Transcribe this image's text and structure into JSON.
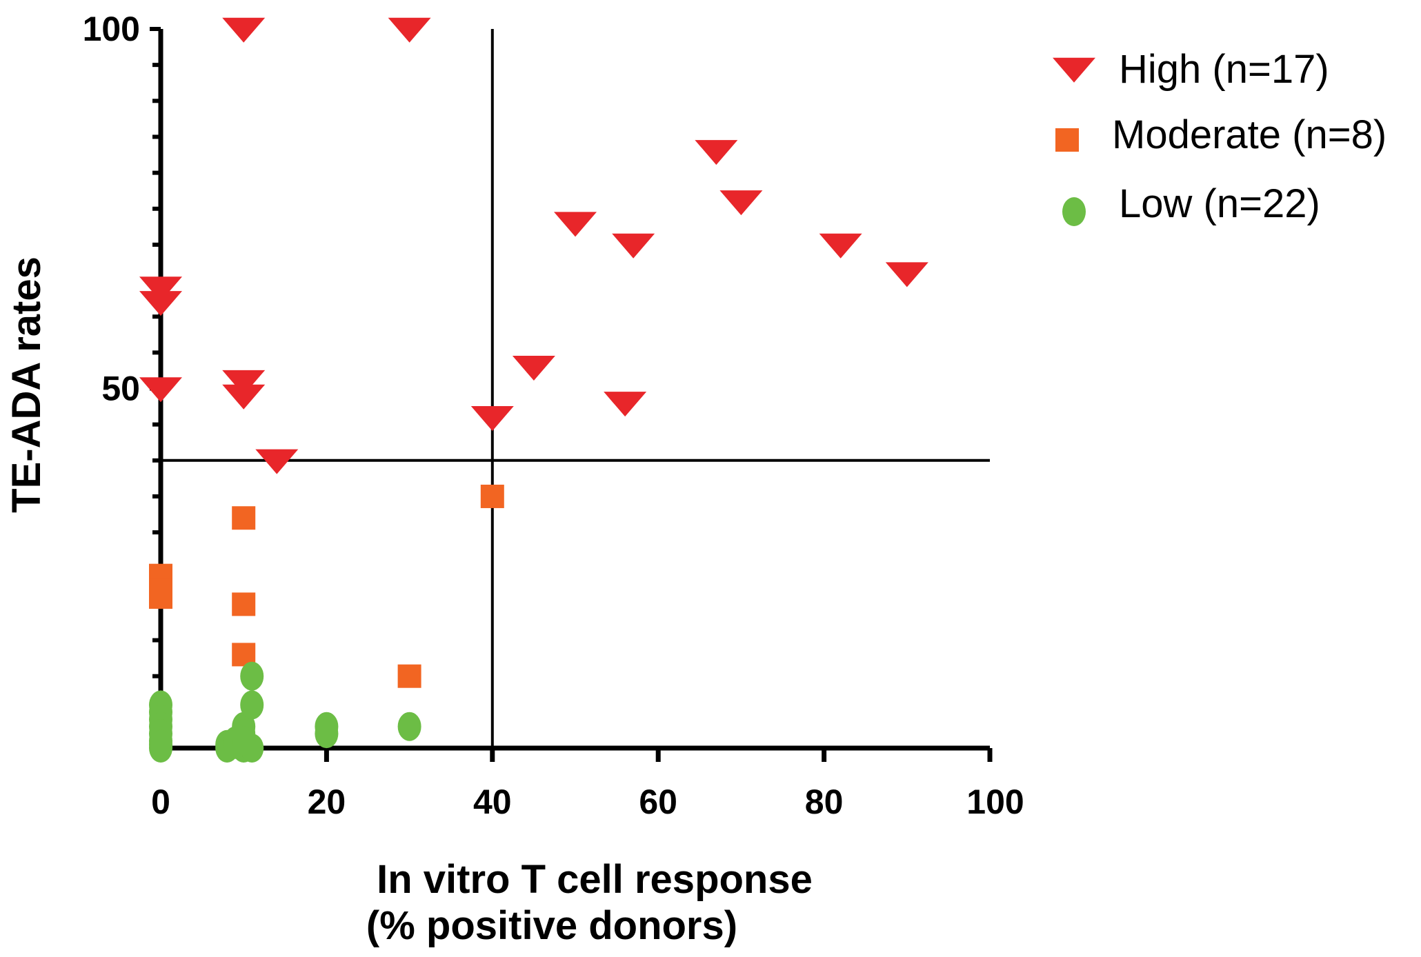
{
  "chart_data": {
    "type": "scatter",
    "xlabel_line1": "In vitro T cell response",
    "xlabel_line2": "(% positive donors)",
    "ylabel": "TE-ADA rates",
    "xlim": [
      0,
      100
    ],
    "ylim": [
      0,
      100
    ],
    "x_ticks": [
      0,
      20,
      40,
      60,
      80,
      100
    ],
    "x_tick_labels": [
      "0",
      "20",
      "40",
      "60",
      "80",
      "100"
    ],
    "y_tick_labels": [
      {
        "value": 50,
        "label": "50"
      },
      {
        "value": 100,
        "label": "100"
      }
    ],
    "y_minor_tick_step": 5,
    "threshold_x": 40,
    "threshold_y": 40,
    "legend_position": "top-right",
    "colors": {
      "high": "#e8262a",
      "moderate": "#f26522",
      "low": "#6cbd45",
      "axis": "#000000"
    },
    "series": [
      {
        "name": "High (n=17)",
        "key": "high",
        "marker": "triangle-down",
        "points": [
          [
            10,
            100
          ],
          [
            30,
            100
          ],
          [
            0,
            64
          ],
          [
            0,
            62
          ],
          [
            0,
            50
          ],
          [
            10,
            51
          ],
          [
            10,
            49
          ],
          [
            14,
            40
          ],
          [
            40,
            46
          ],
          [
            45,
            53
          ],
          [
            50,
            73
          ],
          [
            56,
            48
          ],
          [
            57,
            70
          ],
          [
            67,
            83
          ],
          [
            70,
            76
          ],
          [
            82,
            70
          ],
          [
            90,
            66
          ]
        ]
      },
      {
        "name": "Moderate (n=8)",
        "key": "moderate",
        "marker": "square",
        "points": [
          [
            0,
            24
          ],
          [
            0,
            22
          ],
          [
            10,
            32
          ],
          [
            10,
            20
          ],
          [
            10,
            13
          ],
          [
            30,
            10
          ],
          [
            40,
            35
          ],
          [
            0,
            21
          ]
        ]
      },
      {
        "name": "Low (n=22)",
        "key": "low",
        "marker": "circle",
        "points": [
          [
            0,
            6
          ],
          [
            0,
            5
          ],
          [
            0,
            4
          ],
          [
            0,
            3
          ],
          [
            0,
            2
          ],
          [
            0,
            1
          ],
          [
            0,
            0
          ],
          [
            0,
            0.5
          ],
          [
            8,
            0.5
          ],
          [
            8,
            0
          ],
          [
            9,
            1
          ],
          [
            10,
            3
          ],
          [
            10,
            2
          ],
          [
            10,
            0
          ],
          [
            11,
            0
          ],
          [
            11,
            10
          ],
          [
            11,
            6
          ],
          [
            20,
            3
          ],
          [
            20,
            2
          ],
          [
            30,
            3
          ],
          [
            9,
            0.5
          ],
          [
            10,
            1
          ]
        ]
      }
    ]
  }
}
